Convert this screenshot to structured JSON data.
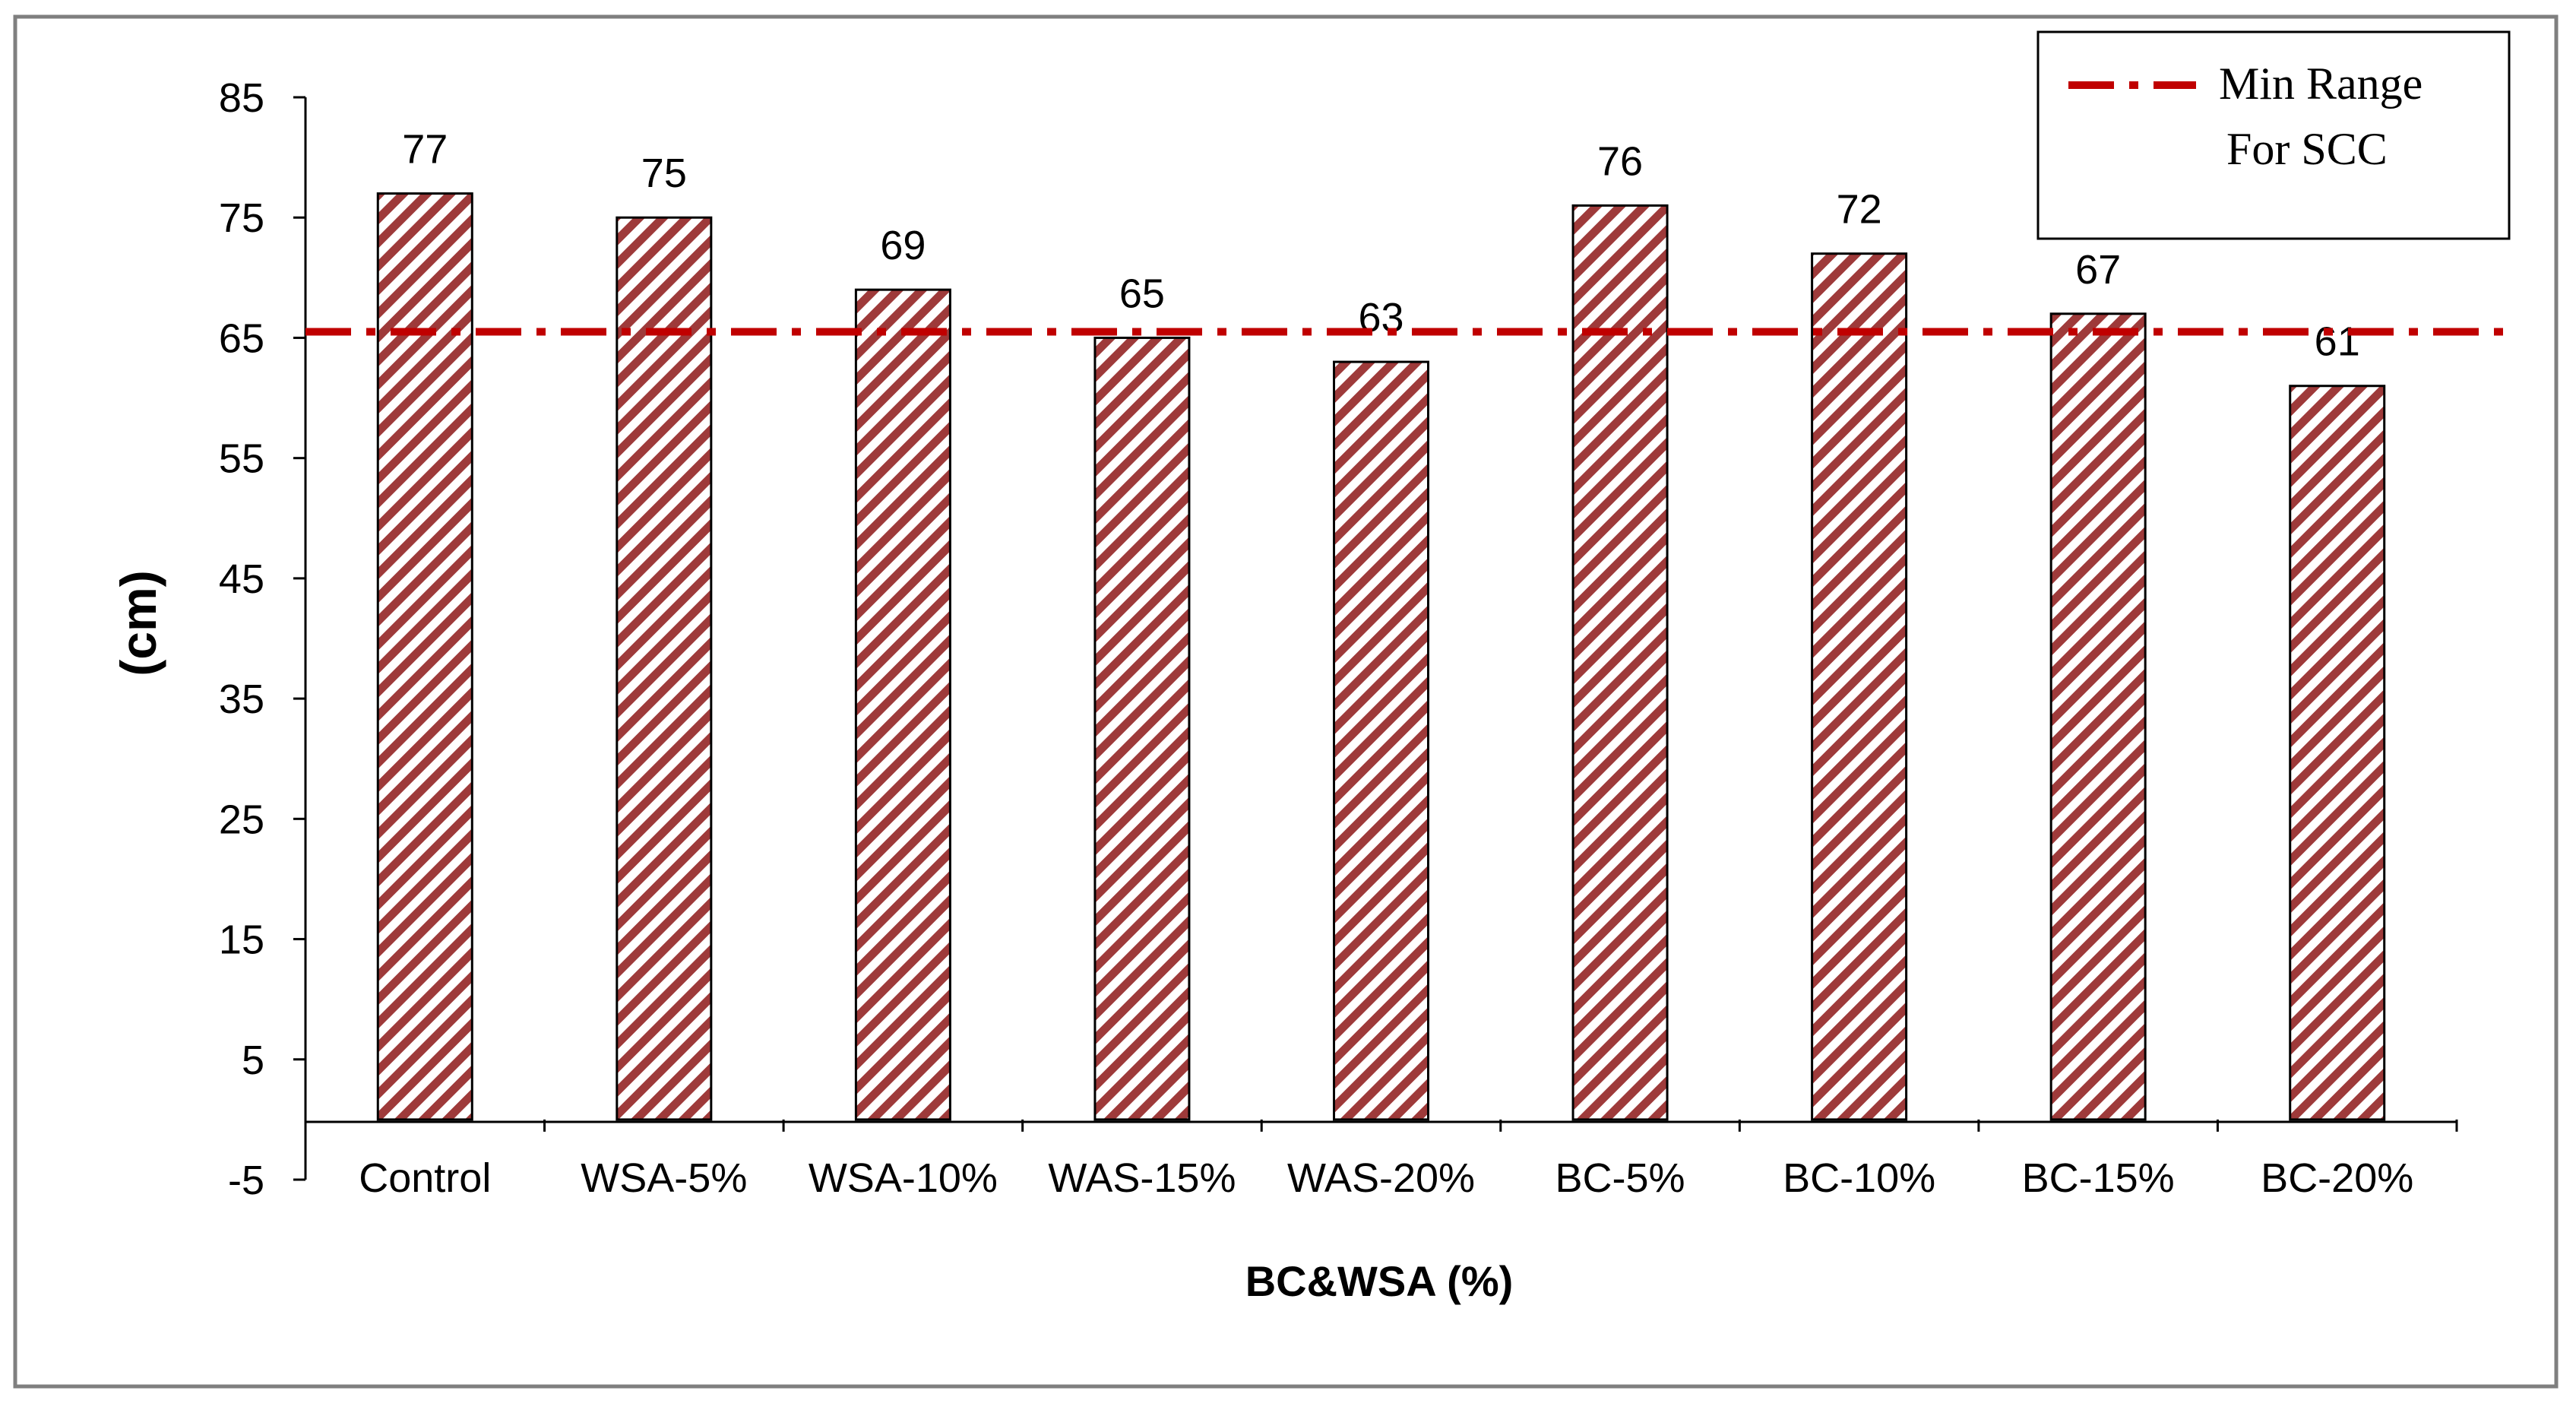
{
  "chart_data": {
    "type": "bar",
    "categories": [
      "Control",
      "WSA-5%",
      "WSA-10%",
      "WAS-15%",
      "WAS-20%",
      "BC-5%",
      "BC-10%",
      "BC-15%",
      "BC-20%"
    ],
    "values": [
      77,
      75,
      69,
      65,
      63,
      76,
      72,
      67,
      61
    ],
    "data_labels": [
      "77",
      "75",
      "69",
      "65",
      "63",
      "76",
      "72",
      "67",
      "61"
    ],
    "xlabel": "BC&WSA (%)",
    "ylabel": "(cm)",
    "ylim": [
      -5,
      85
    ],
    "yticks": [
      -5,
      5,
      15,
      25,
      35,
      45,
      55,
      65,
      75,
      85
    ],
    "ytick_labels": [
      "-5",
      "5",
      "15",
      "25",
      "35",
      "45",
      "55",
      "65",
      "75",
      "85"
    ],
    "reference_line": {
      "value": 65.5,
      "style": "dash-dot",
      "legend_line1": "Min Range",
      "legend_line2": "For SCC"
    },
    "grid": false,
    "legend_position": "top-right",
    "colors": {
      "bar_hatch": "#9e3a3a",
      "bar_outline": "#000000",
      "reference_line": "#c00000"
    }
  }
}
